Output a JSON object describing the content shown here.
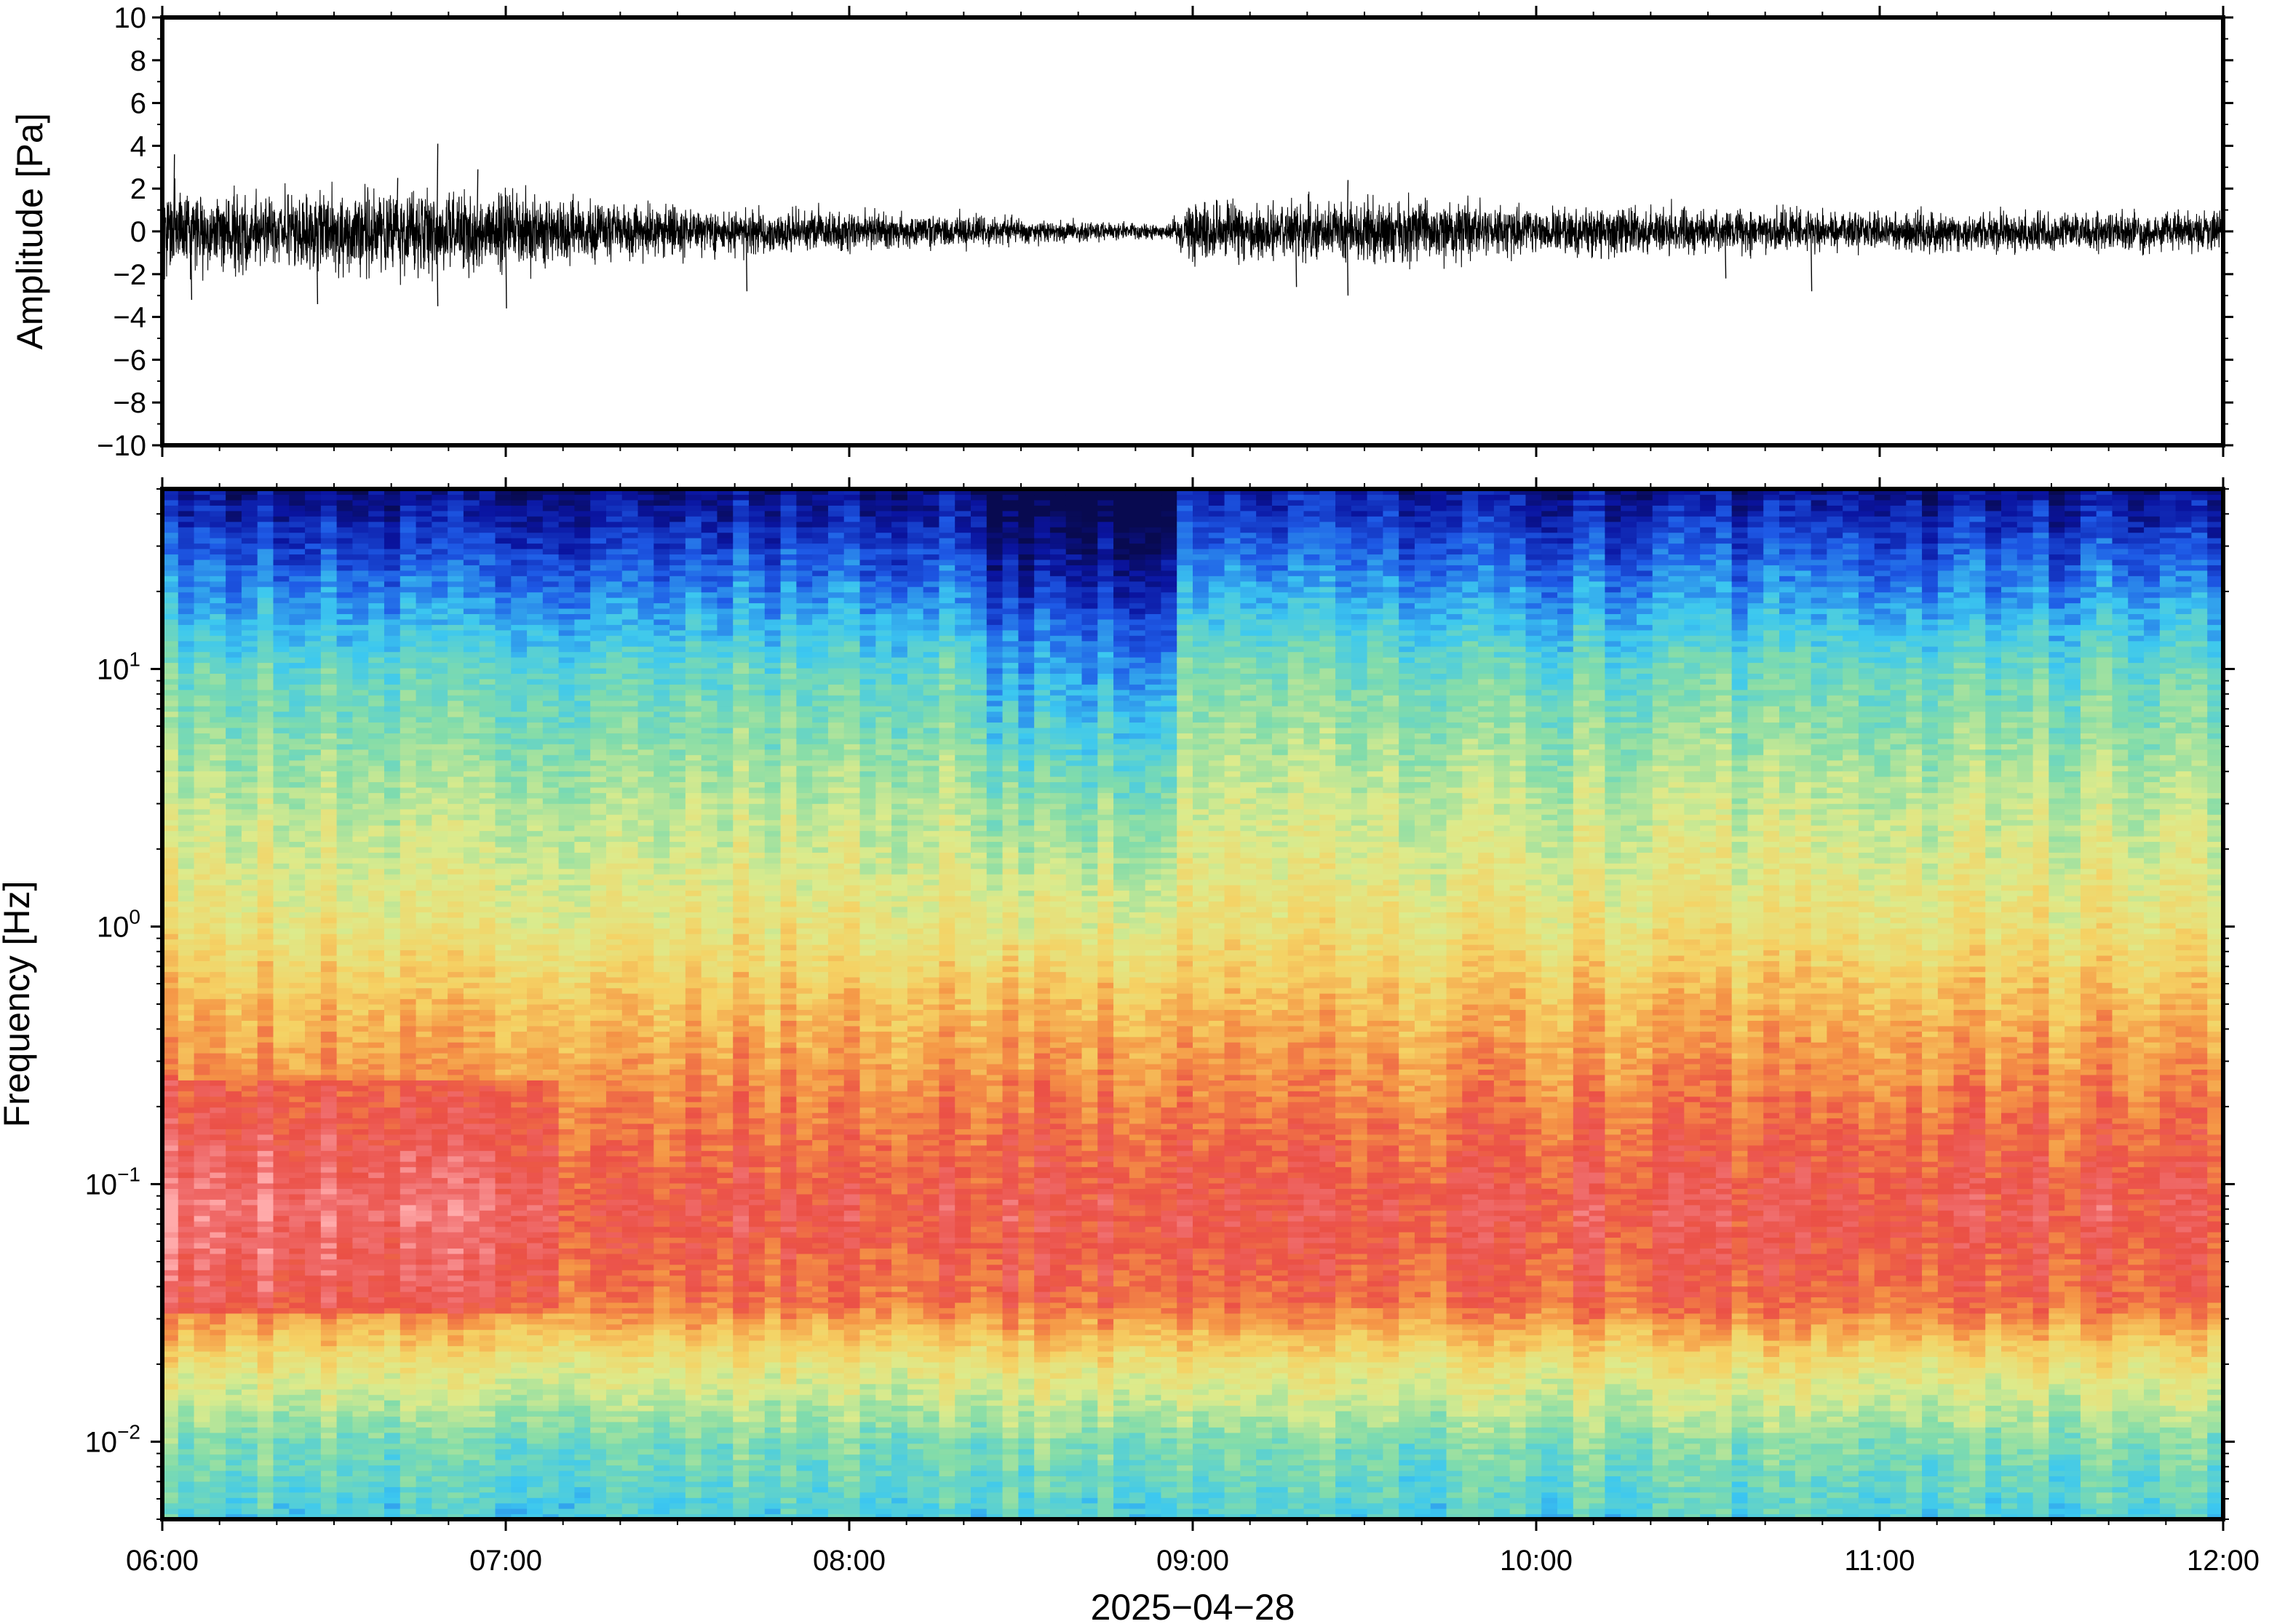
{
  "chart_data": [
    {
      "type": "line",
      "panel": "waveform",
      "ylabel": "Amplitude [Pa]",
      "ylim": [
        -10,
        10
      ],
      "yticks": [
        -10,
        -8,
        -6,
        -4,
        -2,
        0,
        2,
        4,
        6,
        8,
        10
      ],
      "ytick_labels": [
        "−10",
        "−8",
        "−6",
        "−4",
        "−2",
        "0",
        "2",
        "4",
        "6",
        "8",
        "10"
      ],
      "xlim": [
        "06:00",
        "12:00"
      ],
      "amplitude_envelope": {
        "times": [
          "06:00",
          "06:20",
          "06:40",
          "07:00",
          "07:20",
          "07:40",
          "08:00",
          "08:20",
          "08:40",
          "08:55",
          "09:00",
          "09:20",
          "09:40",
          "10:00",
          "10:30",
          "11:00",
          "11:30",
          "12:00"
        ],
        "values": [
          1.8,
          1.6,
          1.7,
          1.5,
          1.1,
          0.9,
          0.8,
          0.6,
          0.4,
          0.3,
          1.1,
          1.2,
          1.3,
          0.9,
          0.9,
          0.8,
          0.8,
          0.8
        ]
      },
      "peaks": [
        {
          "time": "06:02",
          "value": 3.6
        },
        {
          "time": "06:05",
          "value": -3.2
        },
        {
          "time": "06:27",
          "value": -3.4
        },
        {
          "time": "06:41",
          "value": 2.5
        },
        {
          "time": "06:48",
          "value": 4.1
        },
        {
          "time": "06:48",
          "value": -3.5
        },
        {
          "time": "06:55",
          "value": 2.9
        },
        {
          "time": "07:00",
          "value": -3.6
        },
        {
          "time": "07:42",
          "value": -2.8
        },
        {
          "time": "09:18",
          "value": -2.6
        },
        {
          "time": "09:27",
          "value": 2.4
        },
        {
          "time": "09:27",
          "value": -3.0
        },
        {
          "time": "10:33",
          "value": -2.2
        },
        {
          "time": "10:48",
          "value": -2.8
        }
      ]
    },
    {
      "type": "heatmap",
      "panel": "spectrogram",
      "ylabel": "Frequency [Hz]",
      "yscale": "log",
      "ylim": [
        0.005,
        50
      ],
      "yticks": [
        0.01,
        0.1,
        1,
        10
      ],
      "ytick_labels": [
        {
          "base": "10",
          "exp": "−2"
        },
        {
          "base": "10",
          "exp": "−1"
        },
        {
          "base": "10",
          "exp": "0"
        },
        {
          "base": "10",
          "exp": "1"
        }
      ],
      "xlabel": "2025−04−28",
      "xlim": [
        "06:00",
        "12:00"
      ],
      "xticks": [
        "06:00",
        "07:00",
        "08:00",
        "09:00",
        "10:00",
        "11:00",
        "12:00"
      ],
      "colormap": "rainbow",
      "description_of_structure": {
        "high_freq_power": "low (dark blue) above ~20 Hz, darkest near 08:40–08:55",
        "mid_freq_power": "yellow-green between ~1 and ~10 Hz",
        "microseism_band_hz": [
          0.04,
          0.3
        ],
        "microseism_power": "high (red/pink), strongest 06:00–07:00",
        "low_freq_power": "cyan-green below ~0.02 Hz"
      }
    }
  ]
}
